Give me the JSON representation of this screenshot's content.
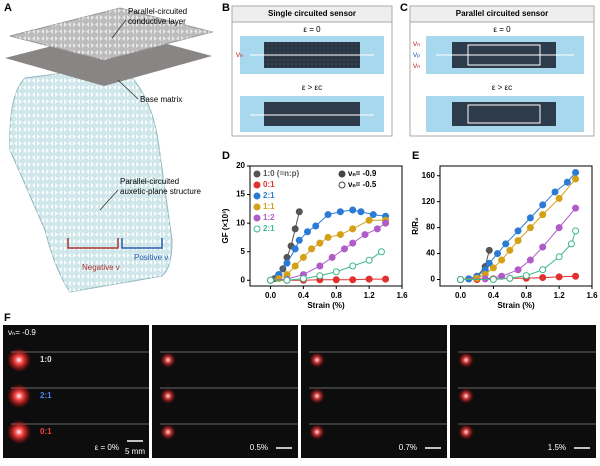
{
  "panels": {
    "A": {
      "letter": "A",
      "labels": [
        [
          "Parallel-circuited",
          "conductive layer"
        ],
        [
          "Base matrix"
        ],
        [
          "Parallel-circuited",
          "auxetic-plane structure"
        ]
      ],
      "positive": "Positive ν",
      "negative": "Negative ν"
    },
    "B": {
      "letter": "B",
      "title": "Single circuited sensor",
      "strain0": "ε = 0",
      "strain1": "ε > εc",
      "nu": [
        "νₙ"
      ]
    },
    "C": {
      "letter": "C",
      "title": "Parallel circuited sensor",
      "strain0": "ε = 0",
      "strain1": "ε > εc",
      "nu": [
        "νₙ",
        "νₚ",
        "νₙ"
      ]
    },
    "F": {
      "letter": "F",
      "nu": "νₙ= -0.9",
      "ratios": [
        "1:0",
        "2:1",
        "0:1"
      ],
      "frames": [
        "ε = 0%",
        "0.5%",
        "0.7%",
        "1.5%"
      ],
      "scale": "5 mm"
    }
  },
  "chart_data": [
    {
      "type": "line",
      "letter": "D",
      "xlabel": "Strain (%)",
      "ylabel": "GF (×10³)",
      "xlim": [
        -0.25,
        1.6
      ],
      "xticks": [
        {
          "value": 0,
          "label": "0.0"
        },
        0.4,
        0.8,
        1.2,
        1.6
      ],
      "ylim": [
        -1,
        20
      ],
      "yticks": [
        0,
        5,
        10,
        15,
        20
      ],
      "series": [
        {
          "name": "1:0 (=n:p)",
          "color": "#555555",
          "marker": "filled",
          "x": [
            0,
            0.05,
            0.1,
            0.15,
            0.2,
            0.25,
            0.3,
            0.35
          ],
          "values": [
            0,
            0.3,
            1,
            2,
            4,
            6,
            9,
            12
          ]
        },
        {
          "name": "0:1",
          "color": "#e03030",
          "marker": "filled",
          "x": [
            0,
            0.2,
            0.4,
            0.6,
            0.8,
            1.0,
            1.2,
            1.4
          ],
          "values": [
            0,
            0,
            0,
            0.1,
            0.1,
            0.1,
            0.2,
            0.2
          ]
        },
        {
          "name": "2:1",
          "color": "#2b7bd6",
          "marker": "filled",
          "x": [
            0,
            0.1,
            0.2,
            0.3,
            0.35,
            0.45,
            0.55,
            0.7,
            0.85,
            1.0,
            1.1,
            1.25,
            1.4
          ],
          "values": [
            0,
            1,
            3,
            5.5,
            7,
            8.5,
            9.5,
            11.5,
            12,
            12.3,
            12,
            11.5,
            11.2
          ]
        },
        {
          "name": "1:1",
          "color": "#d4a017",
          "marker": "filled",
          "x": [
            0,
            0.1,
            0.2,
            0.3,
            0.4,
            0.5,
            0.6,
            0.7,
            0.85,
            1.0,
            1.2,
            1.4
          ],
          "values": [
            0,
            0.3,
            1,
            2.5,
            4,
            5.5,
            6.5,
            7.5,
            8,
            9,
            10.5,
            10.5
          ]
        },
        {
          "name": "1:2",
          "color": "#b05cc8",
          "marker": "filled",
          "x": [
            0,
            0.2,
            0.4,
            0.6,
            0.75,
            0.9,
            1.0,
            1.15,
            1.3,
            1.4
          ],
          "values": [
            0,
            0.2,
            1,
            2.5,
            4,
            5.5,
            6.5,
            8,
            9,
            10
          ]
        },
        {
          "name": "2:1",
          "color": "#3cb98a",
          "marker": "open",
          "x": [
            0,
            0.2,
            0.4,
            0.6,
            0.8,
            1.0,
            1.2,
            1.35
          ],
          "values": [
            0,
            0,
            0.3,
            0.8,
            1.5,
            2.5,
            3.5,
            5
          ]
        }
      ],
      "legend_markers": [
        {
          "label": "νₙ= -0.9",
          "marker": "filled"
        },
        {
          "label": "νₙ= -0.5",
          "marker": "open"
        }
      ]
    },
    {
      "type": "line",
      "letter": "E",
      "xlabel": "Strain (%)",
      "ylabel": "R/R₀",
      "xlim": [
        -0.25,
        1.6
      ],
      "xticks": [
        {
          "value": 0,
          "label": "0.0"
        },
        0.4,
        0.8,
        1.2,
        1.6
      ],
      "ylim": [
        -10,
        175
      ],
      "yticks": [
        0,
        40,
        80,
        120,
        160
      ],
      "series": [
        {
          "color": "#555555",
          "marker": "filled",
          "x": [
            0,
            0.1,
            0.2,
            0.3,
            0.35
          ],
          "values": [
            0,
            1,
            5,
            20,
            45
          ]
        },
        {
          "color": "#e03030",
          "marker": "filled",
          "x": [
            0,
            0.2,
            0.4,
            0.6,
            0.8,
            1.0,
            1.2,
            1.4
          ],
          "values": [
            0,
            0,
            1,
            2,
            2,
            3,
            4,
            5
          ]
        },
        {
          "color": "#2b7bd6",
          "marker": "filled",
          "x": [
            0,
            0.1,
            0.2,
            0.3,
            0.35,
            0.45,
            0.55,
            0.7,
            0.85,
            1.0,
            1.15,
            1.3,
            1.4
          ],
          "values": [
            0,
            1,
            5,
            15,
            25,
            40,
            55,
            75,
            95,
            115,
            135,
            150,
            165
          ]
        },
        {
          "color": "#d4a017",
          "marker": "filled",
          "x": [
            0,
            0.2,
            0.3,
            0.4,
            0.5,
            0.6,
            0.7,
            0.85,
            1.0,
            1.2,
            1.4
          ],
          "values": [
            0,
            2,
            8,
            18,
            30,
            45,
            60,
            80,
            100,
            125,
            155
          ]
        },
        {
          "color": "#b05cc8",
          "marker": "filled",
          "x": [
            0,
            0.3,
            0.5,
            0.7,
            0.85,
            1.0,
            1.2,
            1.4
          ],
          "values": [
            0,
            1,
            5,
            15,
            30,
            50,
            80,
            110
          ]
        },
        {
          "color": "#3cb98a",
          "marker": "open",
          "x": [
            0,
            0.4,
            0.6,
            0.8,
            1.0,
            1.2,
            1.35,
            1.4
          ],
          "values": [
            0,
            0,
            2,
            6,
            15,
            35,
            55,
            75
          ]
        }
      ]
    }
  ]
}
